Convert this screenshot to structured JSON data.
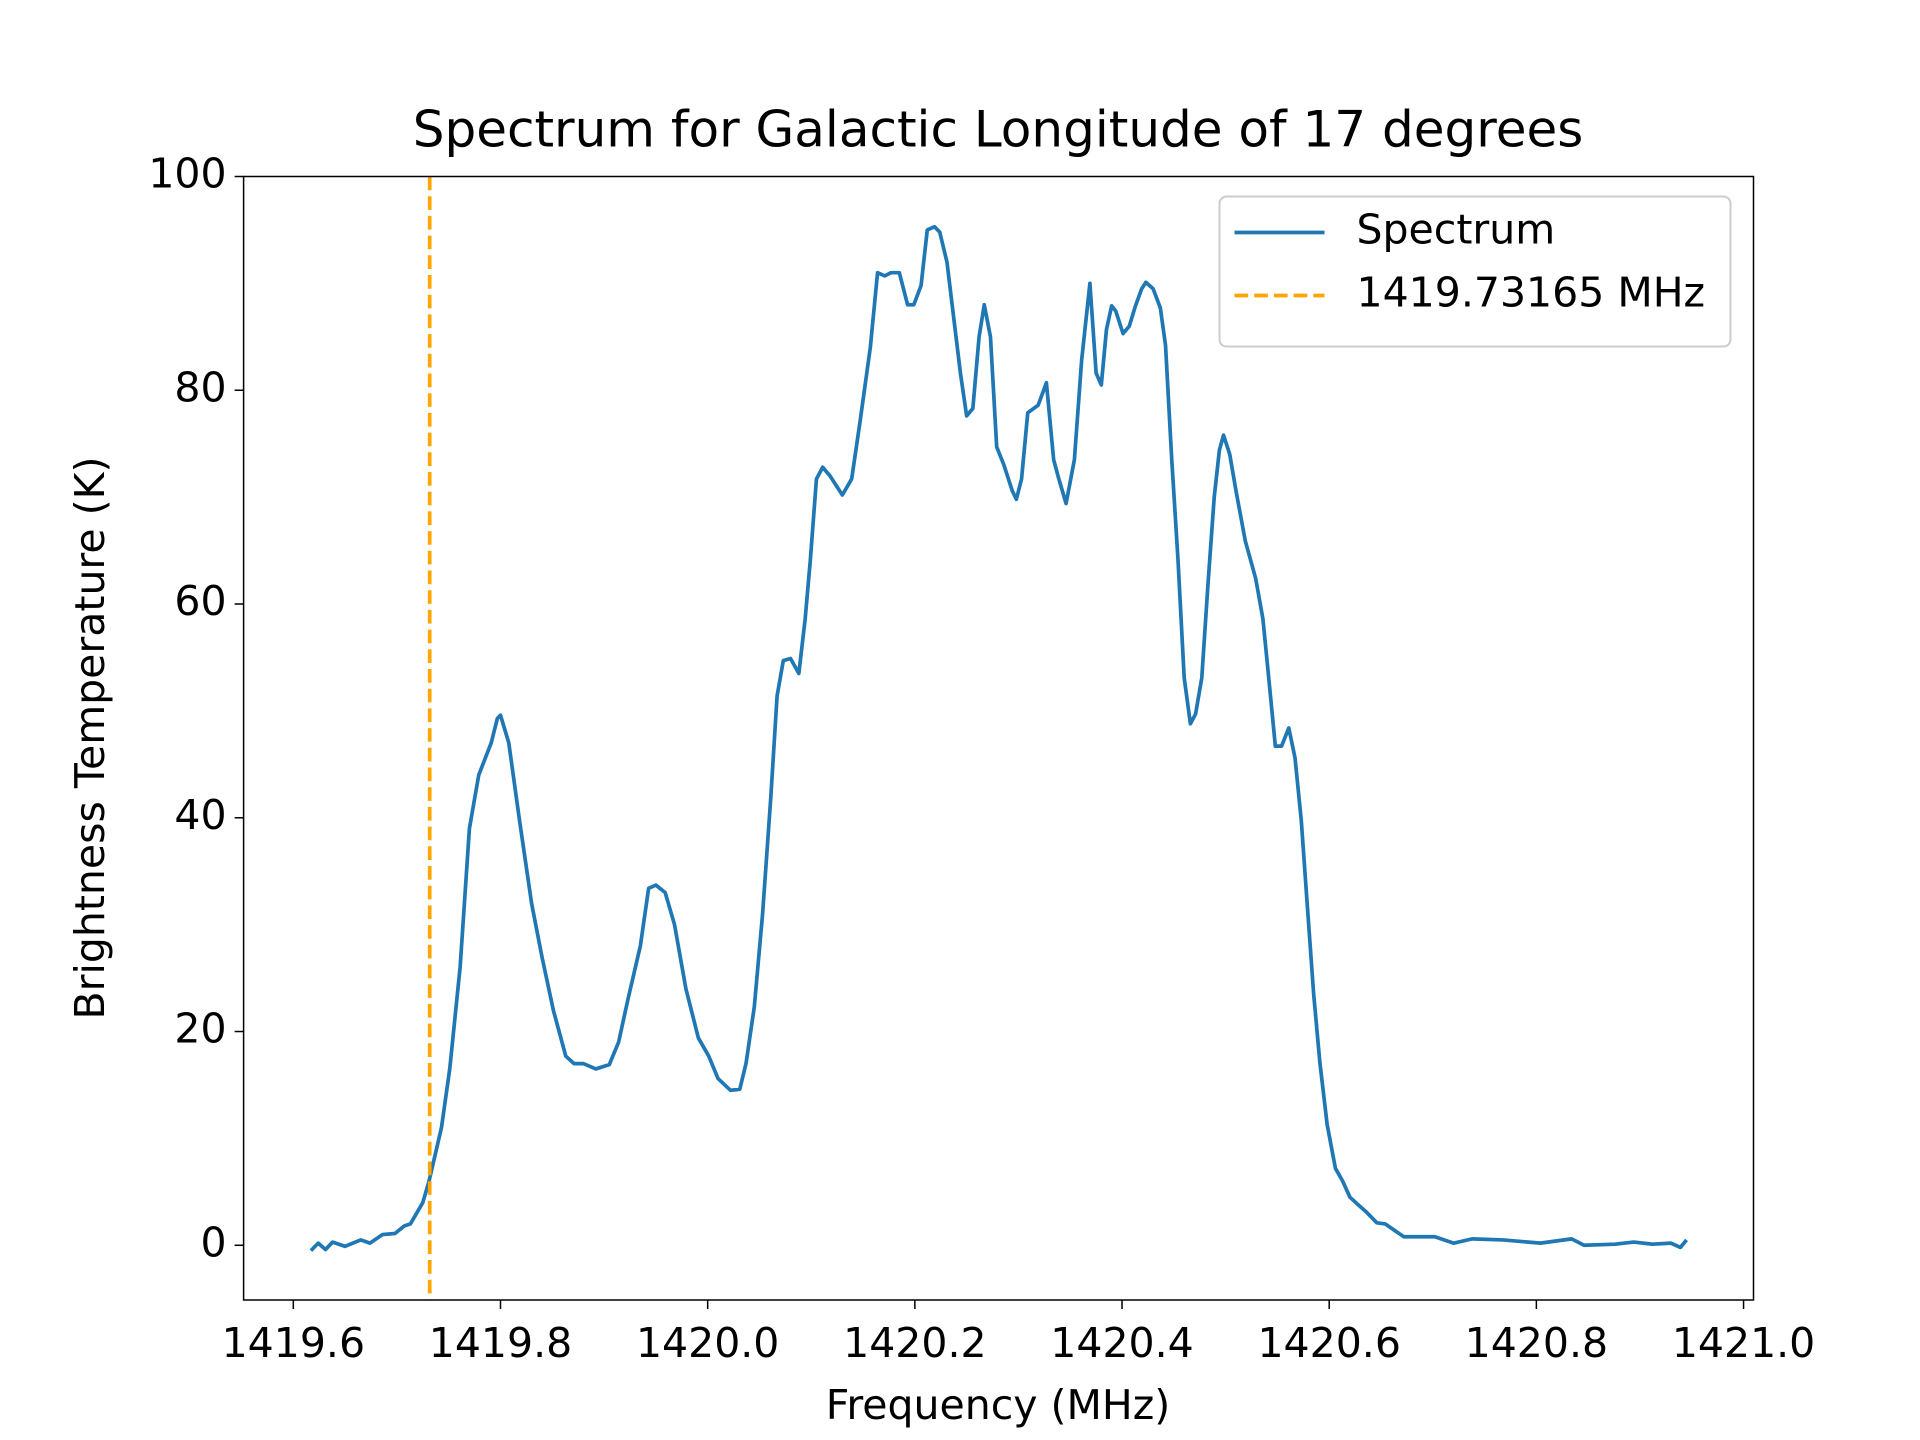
{
  "chart_data": {
    "type": "line",
    "title": "Spectrum for Galactic Longitude of 17 degrees",
    "x_label": "Frequency (MHz)",
    "y_label": "Brightness Temperature (K)",
    "x": [
      1419.617,
      1419.624,
      1419.631,
      1419.638,
      1419.65,
      1419.665,
      1419.674,
      1419.686,
      1419.698,
      1419.707,
      1419.713,
      1419.725,
      1419.731,
      1419.743,
      1419.751,
      1419.761,
      1419.77,
      1419.779,
      1419.791,
      1419.797,
      1419.8,
      1419.808,
      1419.818,
      1419.83,
      1419.84,
      1419.851,
      1419.863,
      1419.871,
      1419.88,
      1419.892,
      1419.905,
      1419.914,
      1419.923,
      1419.935,
      1419.943,
      1419.95,
      1419.959,
      1419.968,
      1419.979,
      1419.991,
      1420.001,
      1420.01,
      1420.022,
      1420.031,
      1420.037,
      1420.045,
      1420.053,
      1420.061,
      1420.067,
      1420.073,
      1420.08,
      1420.088,
      1420.094,
      1420.099,
      1420.105,
      1420.111,
      1420.118,
      1420.13,
      1420.139,
      1420.147,
      1420.157,
      1420.164,
      1420.171,
      1420.177,
      1420.185,
      1420.193,
      1420.199,
      1420.206,
      1420.212,
      1420.219,
      1420.224,
      1420.231,
      1420.238,
      1420.244,
      1420.25,
      1420.256,
      1420.262,
      1420.267,
      1420.273,
      1420.279,
      1420.286,
      1420.294,
      1420.298,
      1420.303,
      1420.309,
      1420.319,
      1420.327,
      1420.334,
      1420.339,
      1420.346,
      1420.354,
      1420.361,
      1420.369,
      1420.375,
      1420.38,
      1420.385,
      1420.39,
      1420.394,
      1420.401,
      1420.407,
      1420.413,
      1420.419,
      1420.423,
      1420.43,
      1420.437,
      1420.442,
      1420.448,
      1420.454,
      1420.46,
      1420.466,
      1420.471,
      1420.477,
      1420.483,
      1420.489,
      1420.494,
      1420.498,
      1420.504,
      1420.51,
      1420.519,
      1420.529,
      1420.536,
      1420.541,
      1420.548,
      1420.554,
      1420.561,
      1420.567,
      1420.573,
      1420.579,
      1420.585,
      1420.591,
      1420.598,
      1420.606,
      1420.613,
      1420.62,
      1420.629,
      1420.636,
      1420.646,
      1420.654,
      1420.663,
      1420.672,
      1420.685,
      1420.702,
      1420.72,
      1420.738,
      1420.768,
      1420.804,
      1420.834,
      1420.846,
      1420.876,
      1420.894,
      1420.912,
      1420.93,
      1420.939,
      1420.945
    ],
    "series": [
      {
        "name": "Spectrum",
        "color": "#1f77b4",
        "values": [
          -0.5,
          0.2,
          -0.4,
          0.3,
          -0.1,
          0.5,
          0.2,
          1,
          1.1,
          1.8,
          2,
          4,
          6,
          11,
          16.5,
          26,
          39,
          44,
          47,
          49.3,
          49.6,
          47,
          40,
          32,
          27,
          22,
          17.7,
          17,
          17,
          16.5,
          16.9,
          19,
          23,
          28,
          33.4,
          33.7,
          33,
          30,
          24,
          19.4,
          17.7,
          15.6,
          14.5,
          14.6,
          17,
          22.3,
          31,
          42,
          51.4,
          54.7,
          54.9,
          53.5,
          58.5,
          64,
          71.7,
          72.8,
          72,
          70.2,
          71.7,
          77,
          84,
          91,
          90.7,
          91,
          91,
          88,
          88,
          89.8,
          95,
          95.3,
          94.8,
          92,
          86.4,
          81.6,
          77.6,
          78.3,
          85,
          88,
          85,
          74.7,
          73,
          70.6,
          69.8,
          71.7,
          77.9,
          78.6,
          80.7,
          73.5,
          71.7,
          69.4,
          73.5,
          82.8,
          90,
          81.6,
          80.5,
          85.7,
          87.9,
          87.4,
          85.3,
          86,
          87.9,
          89.5,
          90.1,
          89.5,
          87.7,
          84.2,
          73.5,
          64.2,
          53.1,
          48.8,
          49.7,
          53.1,
          61.9,
          70,
          74.4,
          75.8,
          74,
          70.6,
          65.9,
          62.4,
          58.6,
          53.7,
          46.7,
          46.7,
          48.4,
          45.6,
          39.8,
          31.6,
          23.5,
          17.1,
          11.3,
          7.2,
          6,
          4.5,
          3.7,
          3.1,
          2.1,
          2,
          1.4,
          0.8,
          0.8,
          0.8,
          0.2,
          0.6,
          0.5,
          0.2,
          0.6,
          0,
          0.1,
          0.3,
          0.1,
          0.2,
          -0.2,
          0.5
        ]
      }
    ],
    "vline": {
      "x": 1419.73165,
      "label": "1419.73165 MHz",
      "color": "#ffa500"
    },
    "xlim": [
      1419.552,
      1421.0096
    ],
    "xticks": [
      1419.6,
      1419.8,
      {
        "value": 1420,
        "label": "1420.0"
      },
      1420.2,
      1420.4,
      1420.6,
      1420.8,
      {
        "value": 1421,
        "label": "1421.0"
      }
    ],
    "ylim": [
      -5.12,
      100
    ],
    "yticks": [
      0,
      20,
      40,
      60,
      80,
      100
    ],
    "legend": "upper right"
  }
}
